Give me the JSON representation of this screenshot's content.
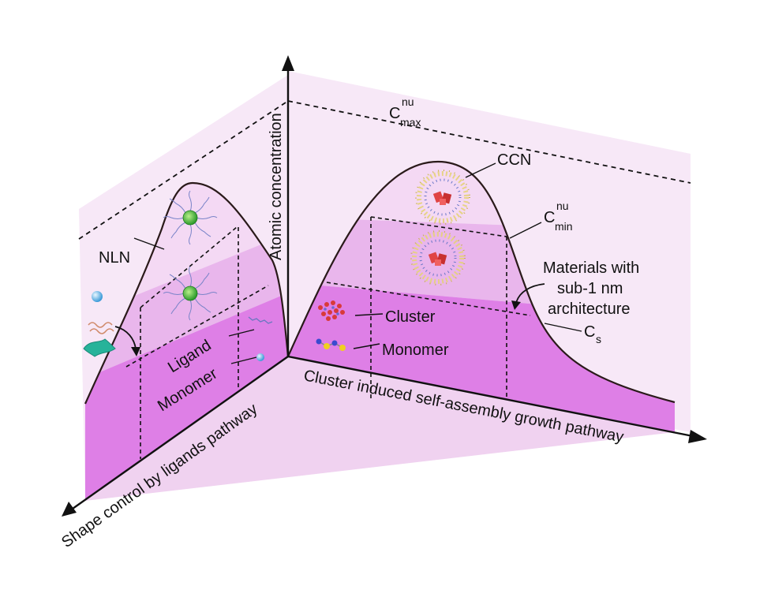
{
  "axes": {
    "vertical": "Atomic concentration",
    "left": "Shape control by ligands pathway",
    "right": "Cluster induced self-assembly growth pathway"
  },
  "levels": {
    "cmax_base": "C",
    "cmax_sup": "nu",
    "cmax_sub": "max",
    "cmin_base": "C",
    "cmin_sup": "nu",
    "cmin_sub": "min",
    "cs_base": "C",
    "cs_sub": "s"
  },
  "labels": {
    "ccn": "CCN",
    "nln": "NLN",
    "cluster": "Cluster",
    "monomer_right": "Monomer",
    "ligand": "Ligand",
    "monomer_left": "Monomer",
    "materials_line1": "Materials with",
    "materials_line2": "sub-1 nm",
    "materials_line3": "architecture"
  },
  "colors": {
    "back_panel": "#f7e8f7",
    "floor": "#f0d2f0",
    "level_high": "#f4d9f4",
    "level_mid": "#e9b6ec",
    "level_low": "#de7fe6",
    "outline": "#2a1a1a"
  },
  "icons": {
    "nanocrystal": "green-ligand-capped-nanoparticle-icon",
    "cluster_particle": "cluster-coated-nanocrystal-icon",
    "cluster": "red-cluster-icon",
    "monomer": "monomer-chain-icon"
  }
}
